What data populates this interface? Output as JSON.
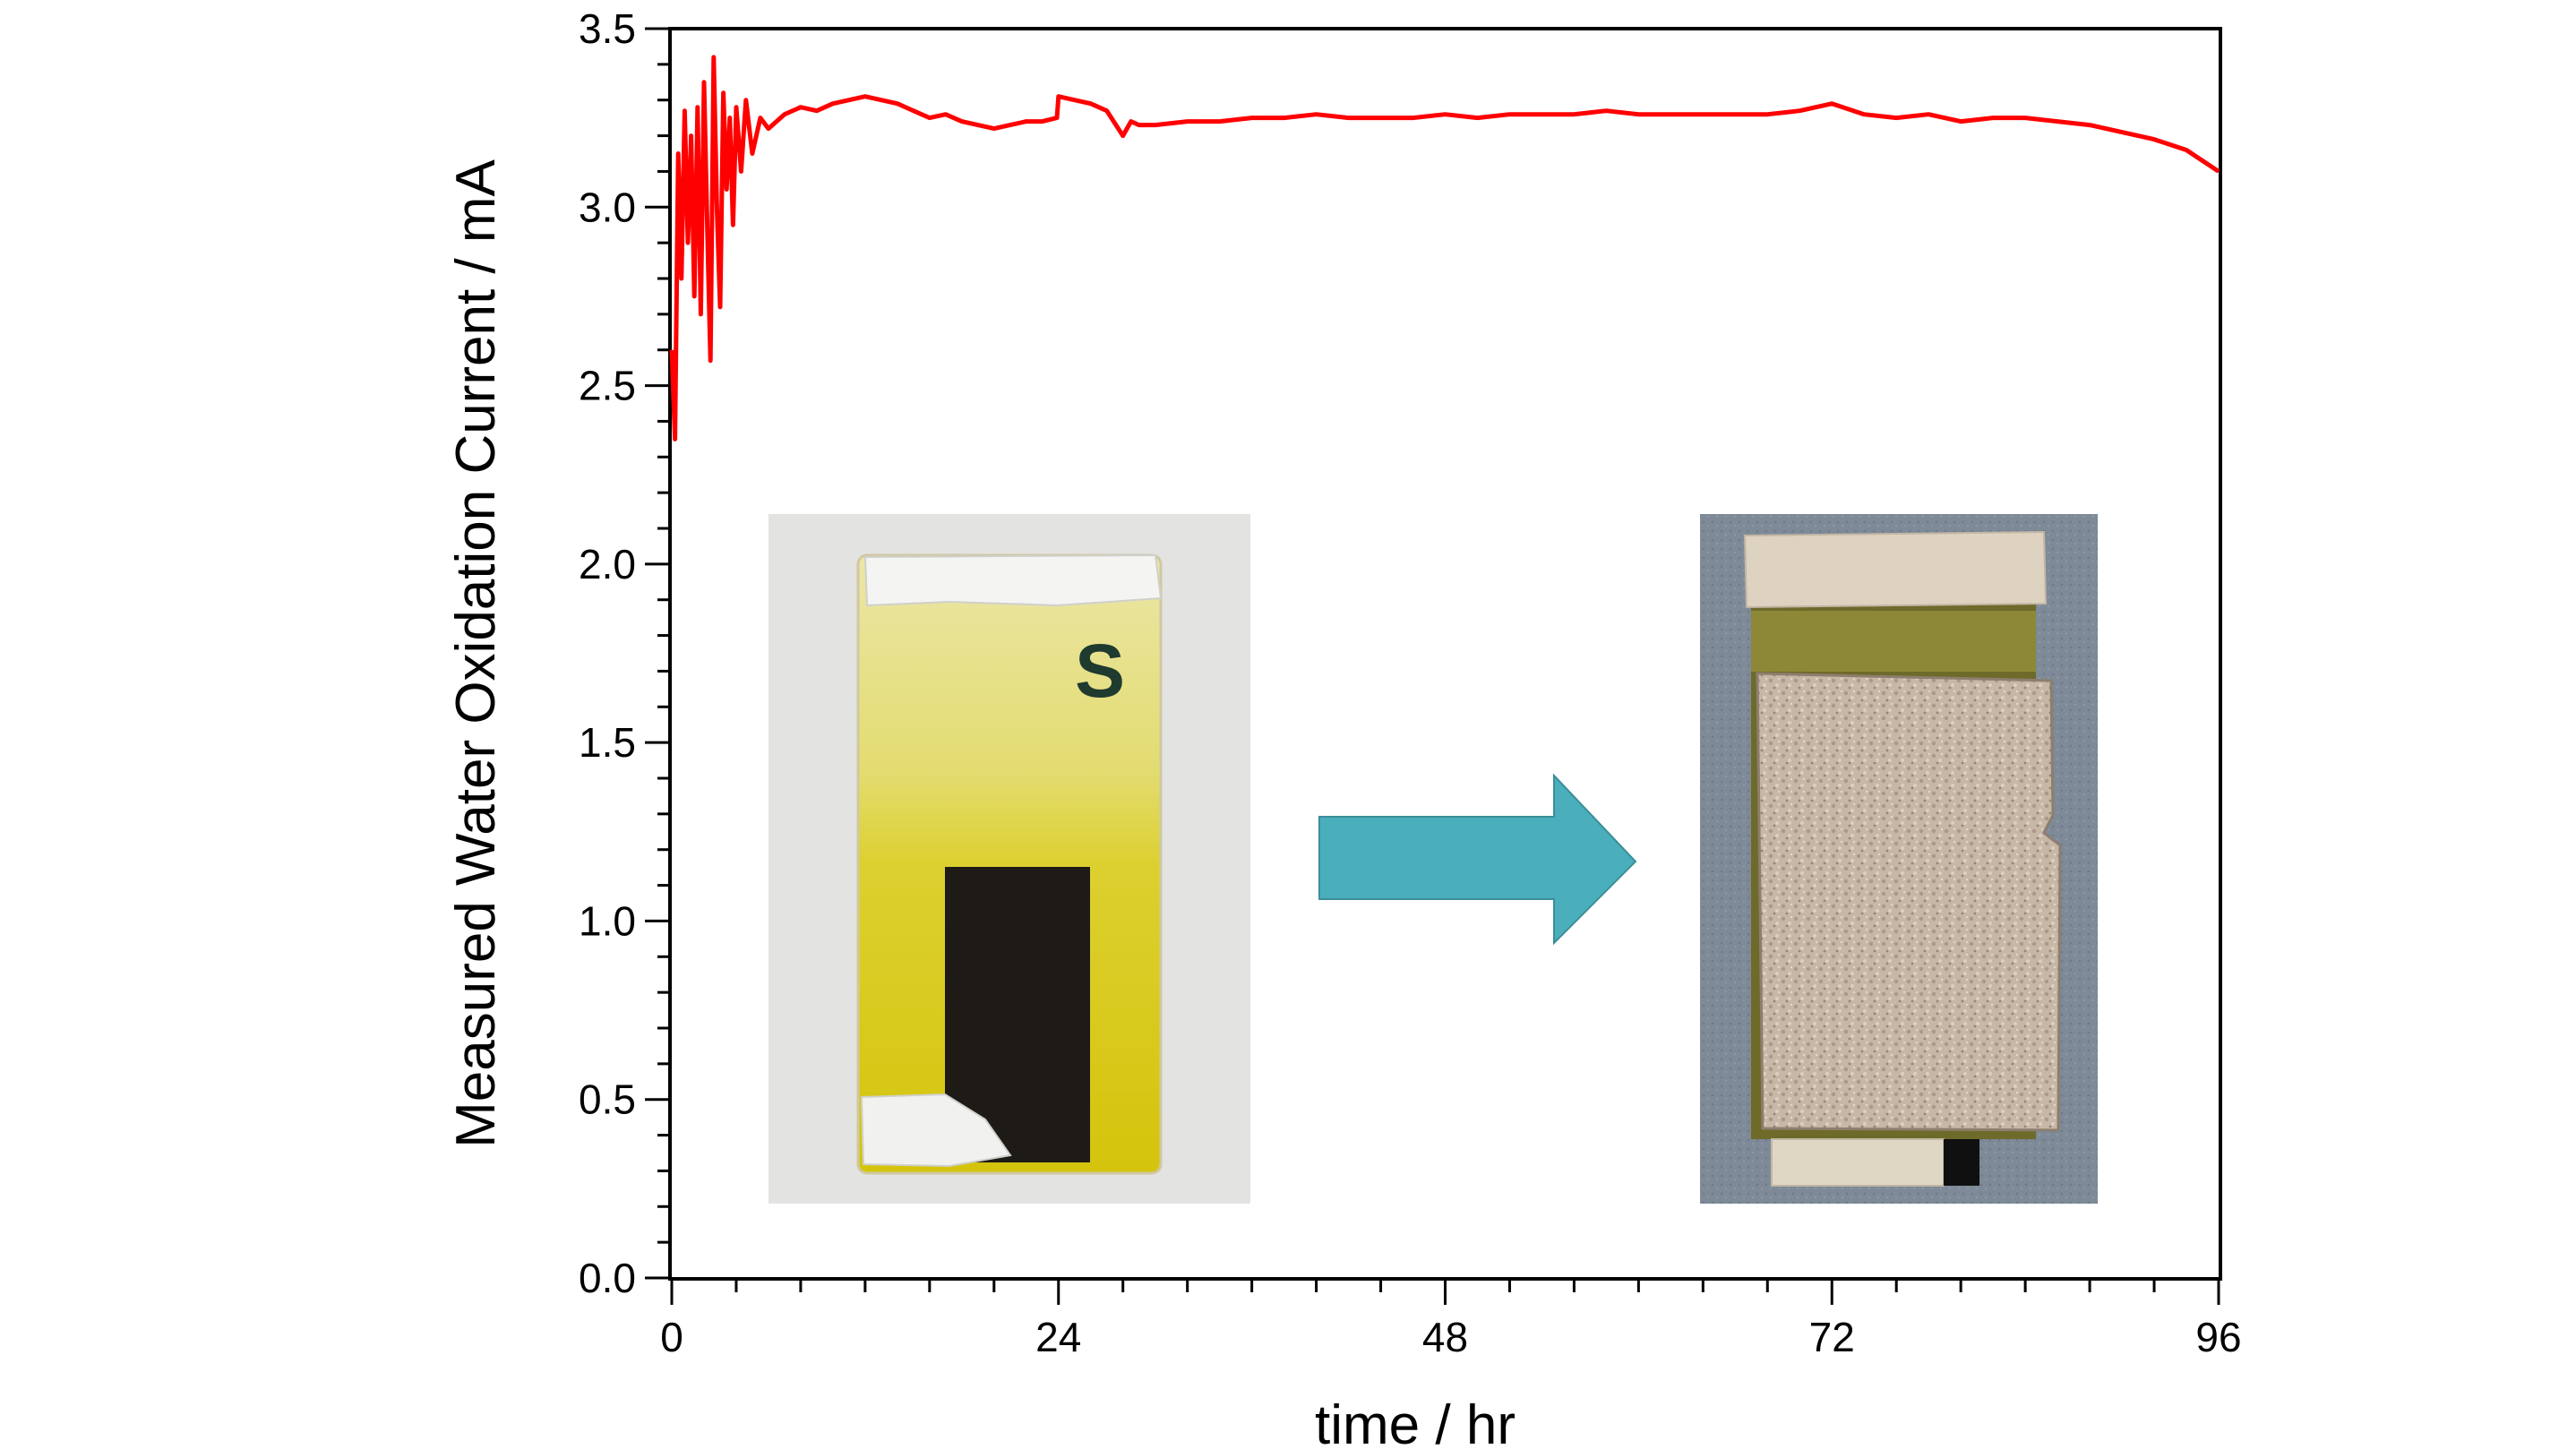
{
  "chart_data": {
    "type": "line",
    "title": "",
    "xlabel": "time / hr",
    "ylabel": "Measured Water Oxidation Current / mA",
    "xlim": [
      0,
      96
    ],
    "ylim": [
      0.0,
      3.5
    ],
    "x_ticks": [
      "0",
      "24",
      "48",
      "72",
      "96"
    ],
    "y_ticks": [
      "0.0",
      "0.5",
      "1.0",
      "1.5",
      "2.0",
      "2.5",
      "3.0",
      "3.5"
    ],
    "grid": false,
    "legend": "none",
    "series": [
      {
        "color": "#ff0000",
        "x": [
          0,
          0.2,
          0.4,
          0.6,
          0.8,
          1.0,
          1.2,
          1.4,
          1.6,
          1.8,
          2.0,
          2.2,
          2.4,
          2.6,
          2.8,
          3.0,
          3.2,
          3.4,
          3.6,
          3.8,
          4.0,
          4.3,
          4.6,
          5.0,
          5.5,
          6.0,
          7.0,
          8.0,
          9.0,
          10,
          11,
          12,
          13,
          14,
          15,
          16,
          17,
          18,
          19,
          20,
          21,
          22,
          23,
          23.9,
          24.0,
          25,
          26,
          27,
          28,
          28.5,
          29,
          30,
          32,
          34,
          36,
          38,
          40,
          42,
          44,
          46,
          48,
          50,
          52,
          54,
          56,
          58,
          60,
          62,
          64,
          66,
          68,
          70,
          72,
          74,
          76,
          78,
          80,
          82,
          84,
          86,
          88,
          90,
          92,
          94,
          96
        ],
        "y": [
          2.6,
          2.35,
          3.15,
          2.8,
          3.27,
          2.9,
          3.2,
          2.75,
          3.28,
          2.7,
          3.35,
          2.95,
          2.57,
          3.42,
          3.0,
          2.72,
          3.32,
          3.05,
          3.25,
          2.95,
          3.28,
          3.1,
          3.3,
          3.15,
          3.25,
          3.22,
          3.26,
          3.28,
          3.27,
          3.29,
          3.3,
          3.31,
          3.3,
          3.29,
          3.27,
          3.25,
          3.26,
          3.24,
          3.23,
          3.22,
          3.23,
          3.24,
          3.24,
          3.25,
          3.31,
          3.3,
          3.29,
          3.27,
          3.2,
          3.24,
          3.23,
          3.23,
          3.24,
          3.24,
          3.25,
          3.25,
          3.26,
          3.25,
          3.25,
          3.25,
          3.26,
          3.25,
          3.26,
          3.26,
          3.26,
          3.27,
          3.26,
          3.26,
          3.26,
          3.26,
          3.26,
          3.27,
          3.29,
          3.26,
          3.25,
          3.26,
          3.24,
          3.25,
          3.25,
          3.24,
          3.23,
          3.21,
          3.19,
          3.16,
          3.1
        ]
      }
    ]
  },
  "inset_images": [
    {
      "label": "S"
    }
  ],
  "arrow_color": "#4aaebc"
}
